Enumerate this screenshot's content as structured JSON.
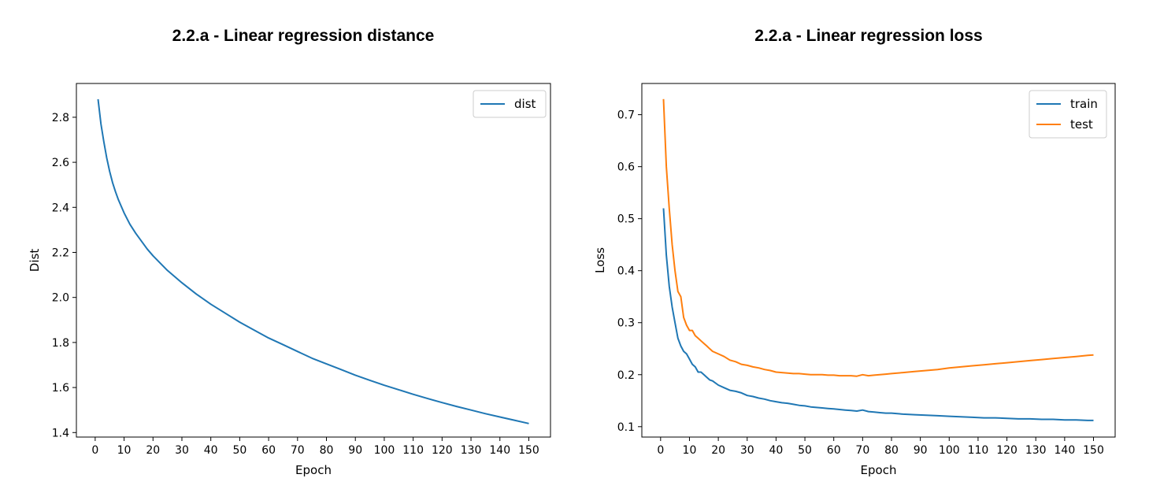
{
  "chart_data": [
    {
      "type": "line",
      "title": "2.2.a - Linear regression distance",
      "xlabel": "Epoch",
      "ylabel": "Dist",
      "xlim": [
        -6.5,
        157.5
      ],
      "ylim": [
        1.38,
        2.95
      ],
      "xticks": [
        0,
        10,
        20,
        30,
        40,
        50,
        60,
        70,
        80,
        90,
        100,
        110,
        120,
        130,
        140,
        150
      ],
      "yticks": [
        1.4,
        1.6,
        1.8,
        2.0,
        2.2,
        2.4,
        2.6,
        2.8
      ],
      "legend": "top-right",
      "grid": false,
      "series": [
        {
          "name": "dist",
          "color": "#1f77b4",
          "x": [
            1,
            2,
            3,
            4,
            5,
            6,
            7,
            8,
            9,
            10,
            12,
            14,
            16,
            18,
            20,
            25,
            30,
            35,
            40,
            45,
            50,
            55,
            60,
            65,
            70,
            75,
            80,
            85,
            90,
            95,
            100,
            105,
            110,
            115,
            120,
            125,
            130,
            135,
            140,
            145,
            150
          ],
          "y": [
            2.88,
            2.77,
            2.69,
            2.62,
            2.56,
            2.51,
            2.47,
            2.435,
            2.405,
            2.375,
            2.325,
            2.285,
            2.25,
            2.215,
            2.185,
            2.12,
            2.065,
            2.015,
            1.97,
            1.93,
            1.89,
            1.855,
            1.82,
            1.79,
            1.76,
            1.73,
            1.705,
            1.68,
            1.655,
            1.632,
            1.61,
            1.59,
            1.57,
            1.551,
            1.533,
            1.516,
            1.5,
            1.484,
            1.469,
            1.455,
            1.44
          ]
        }
      ]
    },
    {
      "type": "line",
      "title": "2.2.a - Linear regression loss",
      "xlabel": "Epoch",
      "ylabel": "Loss",
      "xlim": [
        -6.5,
        157.5
      ],
      "ylim": [
        0.08,
        0.76
      ],
      "xticks": [
        0,
        10,
        20,
        30,
        40,
        50,
        60,
        70,
        80,
        90,
        100,
        110,
        120,
        130,
        140,
        150
      ],
      "yticks": [
        0.1,
        0.2,
        0.3,
        0.4,
        0.5,
        0.6,
        0.7
      ],
      "legend": "top-right",
      "grid": false,
      "series": [
        {
          "name": "train",
          "color": "#1f77b4",
          "x": [
            1,
            2,
            3,
            4,
            5,
            6,
            7,
            8,
            9,
            10,
            11,
            12,
            13,
            14,
            15,
            16,
            17,
            18,
            20,
            22,
            24,
            26,
            28,
            30,
            32,
            34,
            36,
            38,
            40,
            42,
            44,
            46,
            48,
            50,
            52,
            54,
            56,
            58,
            60,
            62,
            64,
            66,
            68,
            70,
            72,
            74,
            76,
            78,
            80,
            84,
            88,
            92,
            96,
            100,
            104,
            108,
            112,
            116,
            120,
            124,
            128,
            132,
            136,
            140,
            144,
            148,
            150
          ],
          "y": [
            0.52,
            0.43,
            0.37,
            0.33,
            0.3,
            0.27,
            0.255,
            0.245,
            0.24,
            0.23,
            0.22,
            0.215,
            0.205,
            0.205,
            0.2,
            0.195,
            0.19,
            0.188,
            0.18,
            0.175,
            0.17,
            0.168,
            0.165,
            0.16,
            0.158,
            0.155,
            0.153,
            0.15,
            0.148,
            0.146,
            0.145,
            0.143,
            0.141,
            0.14,
            0.138,
            0.137,
            0.136,
            0.135,
            0.134,
            0.133,
            0.132,
            0.131,
            0.13,
            0.132,
            0.129,
            0.128,
            0.127,
            0.126,
            0.126,
            0.124,
            0.123,
            0.122,
            0.121,
            0.12,
            0.119,
            0.118,
            0.117,
            0.117,
            0.116,
            0.115,
            0.115,
            0.114,
            0.114,
            0.113,
            0.113,
            0.112,
            0.112
          ]
        },
        {
          "name": "test",
          "color": "#ff7f0e",
          "x": [
            1,
            2,
            3,
            4,
            5,
            6,
            7,
            8,
            9,
            10,
            11,
            12,
            13,
            14,
            15,
            16,
            17,
            18,
            20,
            22,
            24,
            26,
            28,
            30,
            32,
            34,
            36,
            38,
            40,
            42,
            44,
            46,
            48,
            50,
            52,
            54,
            56,
            58,
            60,
            62,
            64,
            66,
            68,
            70,
            72,
            74,
            76,
            78,
            80,
            84,
            88,
            92,
            96,
            100,
            104,
            108,
            112,
            116,
            120,
            124,
            128,
            132,
            136,
            140,
            144,
            148,
            150
          ],
          "y": [
            0.73,
            0.6,
            0.52,
            0.45,
            0.4,
            0.36,
            0.35,
            0.31,
            0.295,
            0.285,
            0.285,
            0.275,
            0.27,
            0.265,
            0.26,
            0.255,
            0.25,
            0.245,
            0.24,
            0.235,
            0.228,
            0.225,
            0.22,
            0.218,
            0.215,
            0.213,
            0.21,
            0.208,
            0.205,
            0.204,
            0.203,
            0.202,
            0.202,
            0.201,
            0.2,
            0.2,
            0.2,
            0.199,
            0.199,
            0.198,
            0.198,
            0.198,
            0.197,
            0.2,
            0.198,
            0.199,
            0.2,
            0.201,
            0.202,
            0.204,
            0.206,
            0.208,
            0.21,
            0.213,
            0.215,
            0.217,
            0.219,
            0.221,
            0.223,
            0.225,
            0.227,
            0.229,
            0.231,
            0.233,
            0.235,
            0.237,
            0.238
          ]
        }
      ]
    }
  ]
}
